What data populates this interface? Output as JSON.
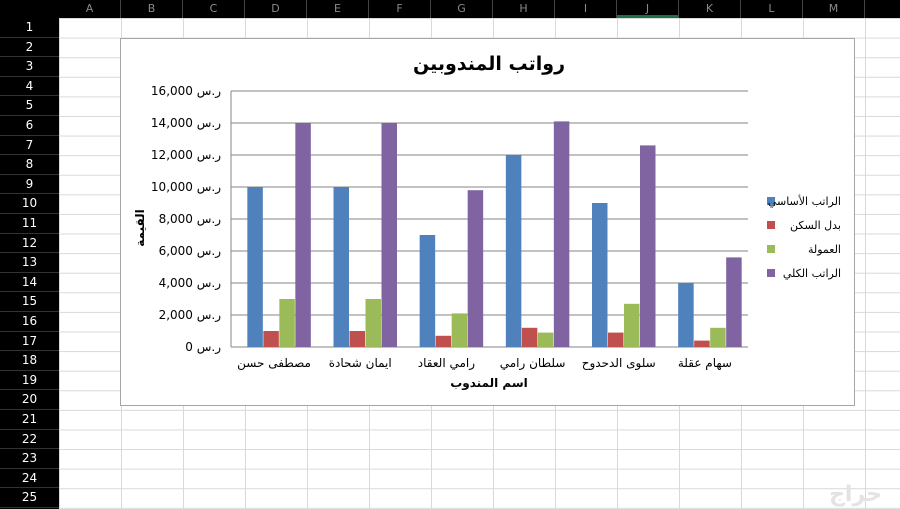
{
  "spreadsheet": {
    "columns": [
      "A",
      "B",
      "C",
      "D",
      "E",
      "F",
      "G",
      "H",
      "I",
      "J",
      "K",
      "L",
      "M"
    ],
    "selected_column": "J",
    "rows": [
      "1",
      "2",
      "3",
      "4",
      "5",
      "6",
      "7",
      "8",
      "9",
      "10",
      "11",
      "12",
      "13",
      "14",
      "15",
      "16",
      "17",
      "18",
      "19",
      "20",
      "21",
      "22",
      "23",
      "24",
      "25"
    ]
  },
  "chart_data": {
    "type": "bar",
    "title": "رواتب المندوبين",
    "xlabel": "اسم المندوب",
    "ylabel": "القيمة",
    "ylim": [
      0,
      16000
    ],
    "yticks": [
      0,
      2000,
      4000,
      6000,
      8000,
      10000,
      12000,
      14000,
      16000
    ],
    "ytick_labels": [
      "ر.س 0",
      "ر.س 2,000",
      "ر.س 4,000",
      "ر.س 6,000",
      "ر.س 8,000",
      "ر.س 10,000",
      "ر.س 12,000",
      "ر.س 14,000",
      "ر.س 16,000"
    ],
    "categories": [
      "مصطفى حسن",
      "ايمان شحادة",
      "رامي العقاد",
      "سلطان رامي",
      "سلوى الدحدوح",
      "سهام عقلة"
    ],
    "series": [
      {
        "name": "الراتب الأساسي",
        "color": "#4f81bd",
        "values": [
          10000,
          10000,
          7000,
          12000,
          9000,
          4000
        ]
      },
      {
        "name": "بدل السكن",
        "color": "#c0504d",
        "values": [
          1000,
          1000,
          700,
          1200,
          900,
          400
        ]
      },
      {
        "name": "العمولة",
        "color": "#9bbb59",
        "values": [
          3000,
          3000,
          2100,
          900,
          2700,
          1200
        ]
      },
      {
        "name": "الراتب الكلي",
        "color": "#8064a2",
        "values": [
          14000,
          14000,
          9800,
          14100,
          12600,
          5600
        ]
      }
    ],
    "grid": true,
    "legend": "right"
  },
  "watermark": "حراج"
}
